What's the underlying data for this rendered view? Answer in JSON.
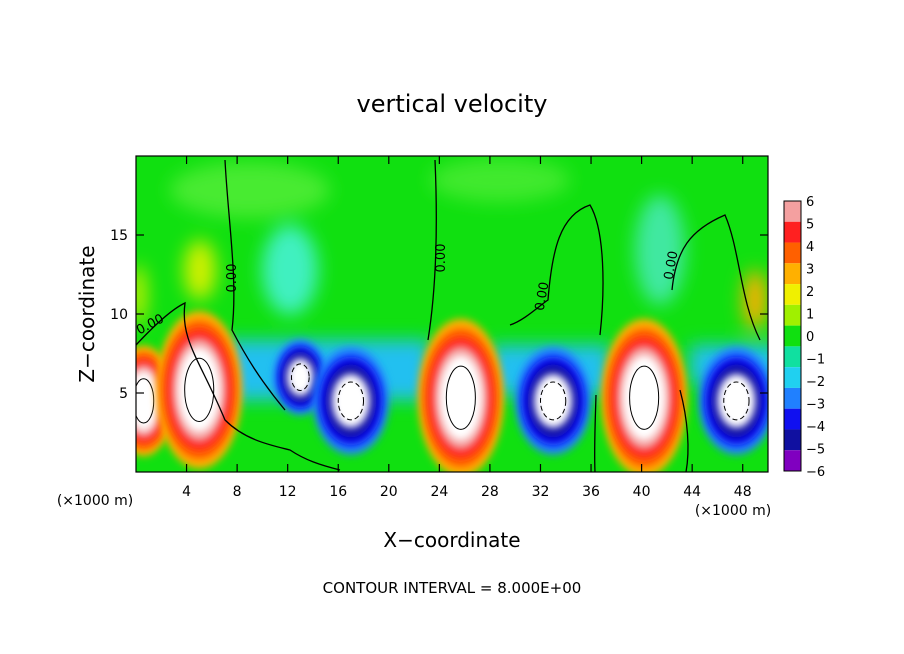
{
  "chart_data": {
    "type": "heatmap",
    "title": "vertical velocity",
    "xlabel": "X−coordinate",
    "ylabel": "Z−coordinate",
    "x_unit_left": "(×1000 m)",
    "x_unit_right": "(×1000 m)",
    "xlim": [
      0,
      50
    ],
    "ylim": [
      0,
      20
    ],
    "x_ticks": [
      4,
      8,
      12,
      16,
      20,
      24,
      28,
      32,
      36,
      40,
      44,
      48
    ],
    "y_ticks": [
      5,
      10,
      15
    ],
    "colorbar": {
      "levels": [
        6,
        5,
        4,
        3,
        2,
        1,
        0,
        -1,
        -2,
        -3,
        -4,
        -5,
        -6
      ],
      "labels": [
        "6",
        "5",
        "4",
        "3",
        "2",
        "1",
        "0",
        "−1",
        "−2",
        "−3",
        "−4",
        "−5",
        "−6"
      ],
      "colors": [
        "#f4a0a0",
        "#ff2020",
        "#ff6000",
        "#ffb000",
        "#f0f000",
        "#a0f000",
        "#10e010",
        "#10e0a0",
        "#20d0f0",
        "#2080ff",
        "#1010f0",
        "#1010a0",
        "#8000c0"
      ]
    },
    "contour_label": "0.00",
    "contour_interval_text": "CONTOUR INTERVAL = 8.000E+00",
    "updrafts": [
      {
        "x": 0.6,
        "z": 4.5,
        "strength": 0.7
      },
      {
        "x": 5.0,
        "z": 5.2,
        "strength": 1.0
      },
      {
        "x": 25.7,
        "z": 4.7,
        "strength": 1.0
      },
      {
        "x": 40.2,
        "z": 4.7,
        "strength": 1.0
      }
    ],
    "downdrafts": [
      {
        "x": 13.0,
        "z": 6.0,
        "strength": 0.7
      },
      {
        "x": 17.0,
        "z": 4.5,
        "strength": 1.0
      },
      {
        "x": 33.0,
        "z": 4.5,
        "strength": 1.0
      },
      {
        "x": 47.5,
        "z": 4.5,
        "strength": 1.0
      }
    ]
  }
}
